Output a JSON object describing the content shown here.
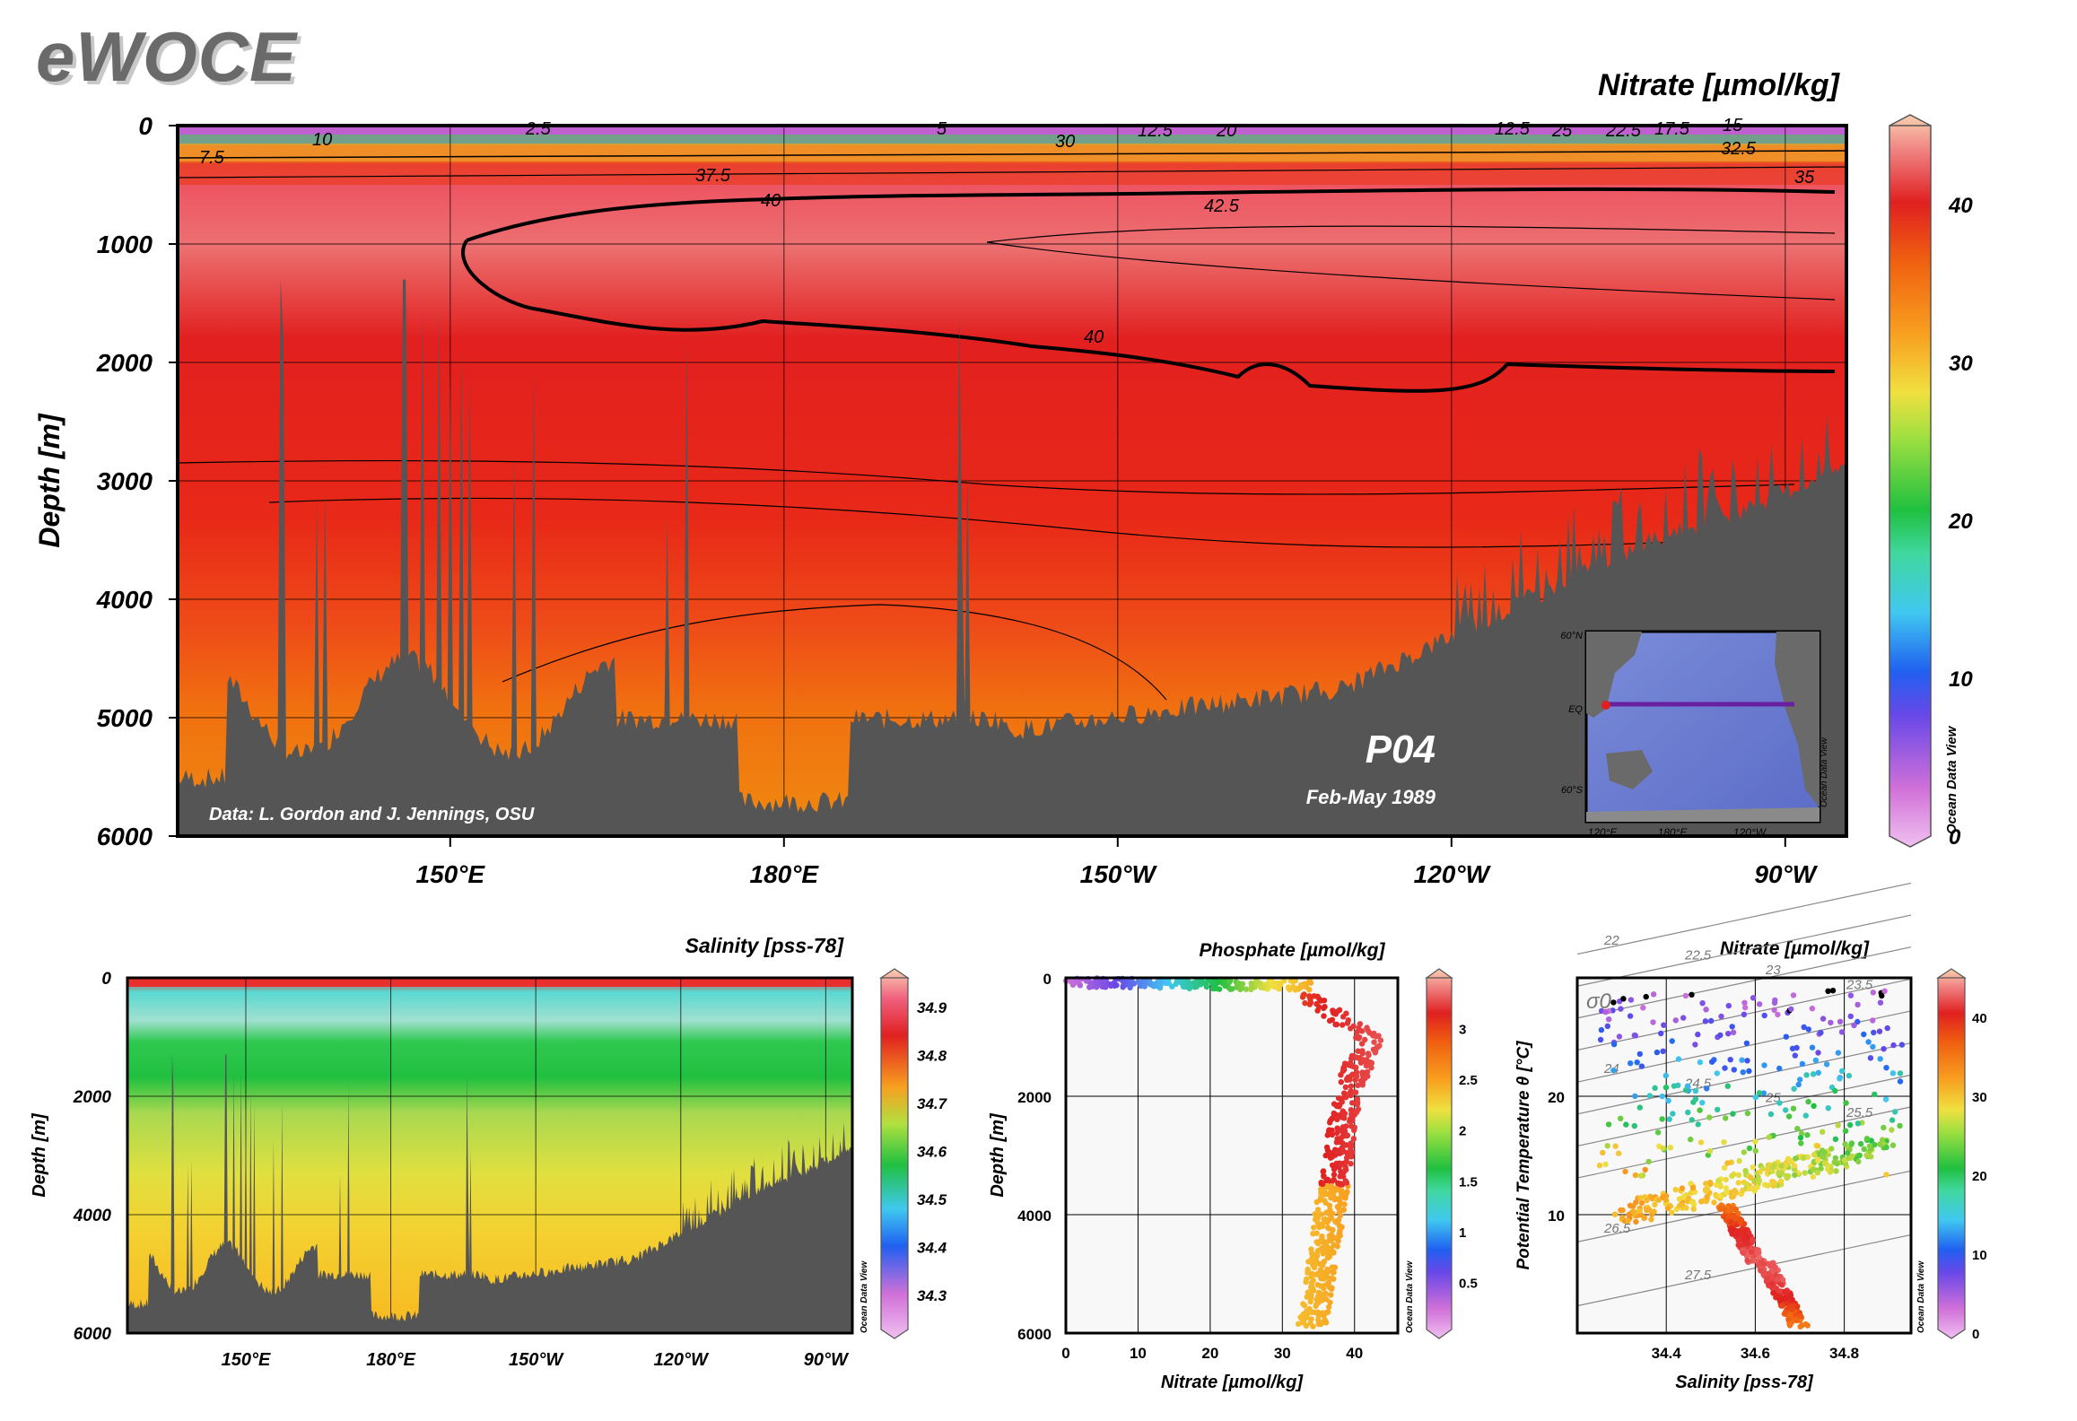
{
  "logo": "eWOCE",
  "chart_data": [
    {
      "type": "heatmap",
      "id": "main_section",
      "title": "Nitrate [µmol/kg]",
      "ylabel": "Depth [m]",
      "ylim": [
        6000,
        0
      ],
      "yticks": [
        0,
        1000,
        2000,
        3000,
        4000,
        5000,
        6000
      ],
      "xtick_labels": [
        "150°E",
        "180°E",
        "150°W",
        "120°W",
        "90°W"
      ],
      "x_label_values": [
        150,
        180,
        210,
        240,
        270
      ],
      "xlim": [
        125.5,
        275.5
      ],
      "colorbar": {
        "ticks": [
          0,
          10,
          20,
          30,
          40
        ],
        "range": [
          0,
          45
        ]
      },
      "contour_labels": [
        "2.5",
        "10",
        "7.5",
        "5",
        "30",
        "12.5",
        "20",
        "12.5",
        "25",
        "22.5",
        "17.5",
        "15",
        "32.5",
        "35",
        "37.5",
        "40",
        "42.5",
        "40"
      ],
      "annotations": {
        "section": "P04",
        "dates": "Feb-May 1989",
        "credit": "Data: L. Gordon and J. Jennings, OSU",
        "software": "Ocean Data View"
      },
      "inset_map": {
        "lat_labels": [
          "60°N",
          "EQ",
          "60°S"
        ],
        "lon_labels": [
          "120°E",
          "180°E",
          "120°W"
        ],
        "software": "Ocean Data View"
      }
    },
    {
      "type": "heatmap",
      "id": "salinity_section",
      "title": "Salinity [pss-78]",
      "ylabel": "Depth [m]",
      "ylim": [
        6000,
        0
      ],
      "yticks": [
        0,
        2000,
        4000,
        6000
      ],
      "xtick_labels": [
        "150°E",
        "180°E",
        "150°W",
        "120°W",
        "90°W"
      ],
      "colorbar": {
        "ticks": [
          34.3,
          34.4,
          34.5,
          34.6,
          34.7,
          34.8,
          34.9
        ],
        "range": [
          34.22,
          34.96
        ]
      },
      "software": "Ocean Data View"
    },
    {
      "type": "scatter",
      "id": "nitrate_depth",
      "title": "Phosphate [µmol/kg]",
      "xlabel": "Nitrate [µmol/kg]",
      "ylabel": "Depth [m]",
      "xlim": [
        0,
        46
      ],
      "ylim": [
        6000,
        0
      ],
      "xticks": [
        0,
        10,
        20,
        30,
        40
      ],
      "yticks": [
        0,
        2000,
        4000,
        6000
      ],
      "colorbar": {
        "ticks": [
          0.5,
          1,
          1.5,
          2,
          2.5,
          3
        ],
        "labels": [
          "0.5",
          "1",
          "1.5",
          "2",
          "2.5",
          "3"
        ],
        "range": [
          0,
          3.5
        ]
      },
      "software": "Ocean Data View"
    },
    {
      "type": "scatter",
      "id": "ts_diagram",
      "title": "Nitrate [µmol/kg]",
      "xlabel": "Salinity [pss-78]",
      "ylabel": "Potential Temperature θ [°C]",
      "xlim": [
        34.2,
        34.95
      ],
      "ylim": [
        0,
        30
      ],
      "xticks": [
        34.4,
        34.6,
        34.8
      ],
      "yticks": [
        10,
        20
      ],
      "isopycnal_labels": [
        "22",
        "22.5",
        "23",
        "23.5",
        "24",
        "24.5",
        "25",
        "25.5",
        "26.5",
        "27.5"
      ],
      "sigma_label": "σ0",
      "colorbar": {
        "ticks": [
          0,
          10,
          20,
          30,
          40
        ],
        "range": [
          0,
          45
        ]
      },
      "software": "Ocean Data View"
    }
  ]
}
